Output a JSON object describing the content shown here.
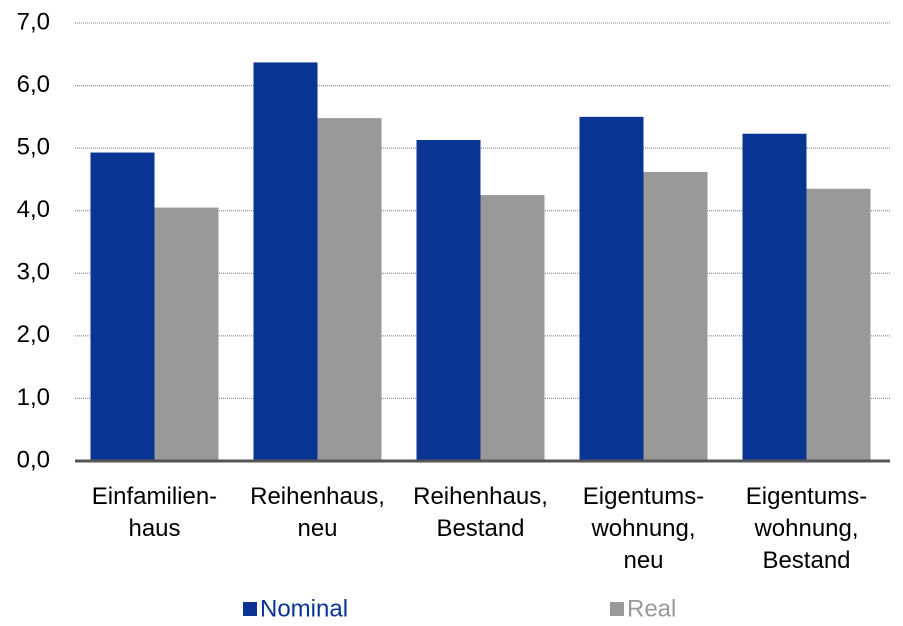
{
  "chart_data": {
    "type": "bar",
    "categories": [
      [
        "Einfamilien-",
        "haus"
      ],
      [
        "Reihenhaus,",
        "neu"
      ],
      [
        "Reihenhaus,",
        "Bestand"
      ],
      [
        "Eigentums-",
        "wohnung,",
        "neu"
      ],
      [
        "Eigentums-",
        "wohnung,",
        "Bestand"
      ]
    ],
    "series": [
      {
        "name": "Nominal",
        "color": "#0a3494",
        "values": [
          4.93,
          6.37,
          5.13,
          5.5,
          5.23
        ]
      },
      {
        "name": "Real",
        "color": "#999999",
        "values": [
          4.05,
          5.48,
          4.25,
          4.62,
          4.35
        ]
      }
    ],
    "ylim": [
      0,
      7
    ],
    "yticks": [
      {
        "value": 0,
        "label": "0,0"
      },
      {
        "value": 1,
        "label": "1,0"
      },
      {
        "value": 2,
        "label": "2,0"
      },
      {
        "value": 3,
        "label": "3,0"
      },
      {
        "value": 4,
        "label": "4,0"
      },
      {
        "value": 5,
        "label": "5,0"
      },
      {
        "value": 6,
        "label": "6,0"
      },
      {
        "value": 7,
        "label": "7,0"
      }
    ],
    "grid": true,
    "legend": "bottom"
  }
}
